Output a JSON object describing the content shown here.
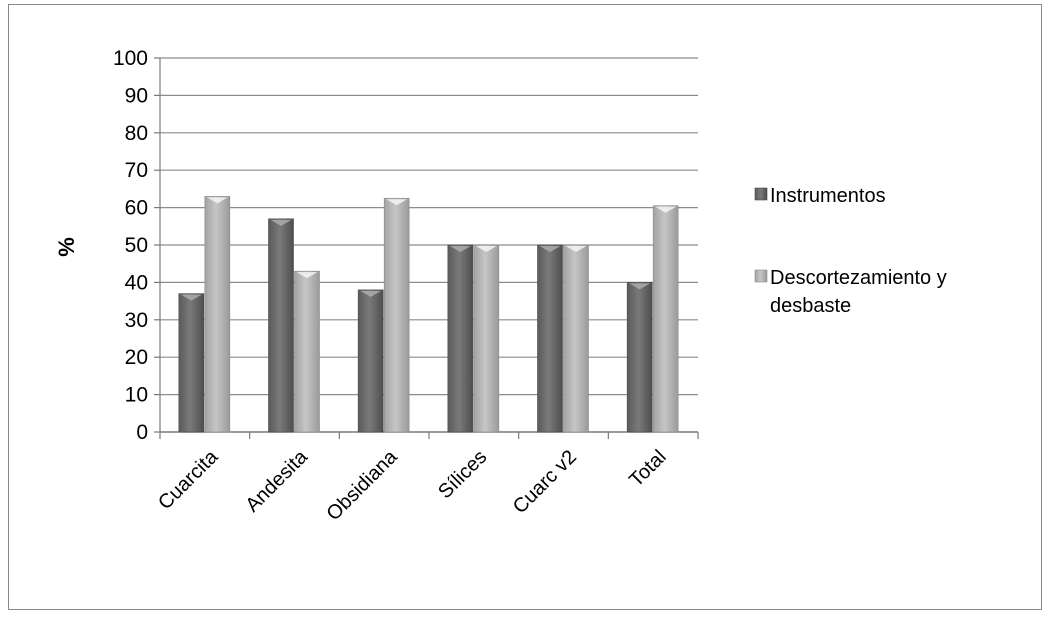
{
  "chart_data": {
    "type": "bar",
    "categories": [
      "Cuarcita",
      "Andesita",
      "Obsidiana",
      "Sílices",
      "Cuarc v2",
      "Total"
    ],
    "series": [
      {
        "name": "Instrumentos",
        "values": [
          37,
          57,
          38,
          50,
          50,
          40
        ],
        "color": "#6b6b6b"
      },
      {
        "name": "Descortezamiento y desbaste",
        "values": [
          63,
          43,
          62.5,
          50,
          50,
          60.5
        ],
        "color": "#b4b4b4"
      }
    ],
    "ylabel": "%",
    "ylim": [
      0,
      100
    ],
    "yticks": [
      0,
      10,
      20,
      30,
      40,
      50,
      60,
      70,
      80,
      90,
      100
    ],
    "grid": true,
    "legend": {
      "placement": "right",
      "entries": [
        {
          "lines": [
            "Instrumentos"
          ]
        },
        {
          "lines": [
            "Descortezamiento y",
            "desbaste"
          ]
        }
      ]
    }
  }
}
